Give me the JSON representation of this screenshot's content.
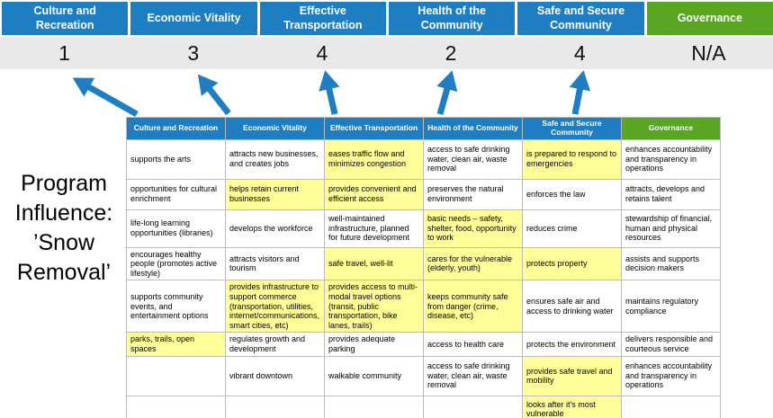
{
  "title": "Program Influence:\n’Snow Removal’",
  "colors": {
    "blue": "#1f7ec2",
    "green": "#58a622",
    "highlight": "#ffff99",
    "score_bg": "#e9e9e9",
    "arrow": "#1f7ec2"
  },
  "pillars": [
    {
      "label": "Culture and Recreation",
      "score": "1",
      "theme": "blue"
    },
    {
      "label": "Economic Vitality",
      "score": "3",
      "theme": "blue"
    },
    {
      "label": "Effective Transportation",
      "score": "4",
      "theme": "blue"
    },
    {
      "label": "Health of the Community",
      "score": "2",
      "theme": "blue"
    },
    {
      "label": "Safe and Secure Community",
      "score": "4",
      "theme": "blue"
    },
    {
      "label": "Governance",
      "score": "N/A",
      "theme": "green"
    }
  ],
  "table": {
    "headers": [
      {
        "label": "Culture and Recreation",
        "theme": "blue"
      },
      {
        "label": "Economic Vitality",
        "theme": "blue"
      },
      {
        "label": "Effective Transportation",
        "theme": "blue"
      },
      {
        "label": "Health of the Community",
        "theme": "blue"
      },
      {
        "label": "Safe and Secure Community",
        "theme": "blue"
      },
      {
        "label": "Governance",
        "theme": "green"
      }
    ],
    "rows": [
      [
        {
          "text": "supports the arts",
          "highlight": false
        },
        {
          "text": "attracts new businesses, and creates jobs",
          "highlight": false
        },
        {
          "text": "eases traffic flow and minimizes congestion",
          "highlight": true
        },
        {
          "text": "access to safe drinking water, clean air, waste removal",
          "highlight": false
        },
        {
          "text": "is prepared to respond to emergencies",
          "highlight": true
        },
        {
          "text": "enhances accountability and transparency in operations",
          "highlight": false
        }
      ],
      [
        {
          "text": "opportunities for cultural enrichment",
          "highlight": false
        },
        {
          "text": "helps retain current businesses",
          "highlight": true
        },
        {
          "text": "provides convenient and efficient access",
          "highlight": true
        },
        {
          "text": "preserves the natural environment",
          "highlight": false
        },
        {
          "text": "enforces the law",
          "highlight": false
        },
        {
          "text": "attracts, develops and retains talent",
          "highlight": false
        }
      ],
      [
        {
          "text": "life-long learning opportunities (libraries)",
          "highlight": false
        },
        {
          "text": "develops the workforce",
          "highlight": false
        },
        {
          "text": "well-maintained infrastructure, planned for future development",
          "highlight": false
        },
        {
          "text": "basic needs – safety, shelter, food, opportunity to work",
          "highlight": true
        },
        {
          "text": "reduces crime",
          "highlight": false
        },
        {
          "text": "stewardship of financial, human and physical resources",
          "highlight": false
        }
      ],
      [
        {
          "text": "encourages healthy people (promotes active lifestyle)",
          "highlight": false
        },
        {
          "text": "attracts visitors and tourism",
          "highlight": false
        },
        {
          "text": "safe travel, well-lit",
          "highlight": true
        },
        {
          "text": "cares for the vulnerable (elderly, youth)",
          "highlight": true
        },
        {
          "text": "protects property",
          "highlight": true
        },
        {
          "text": "assists and supports decision makers",
          "highlight": false
        }
      ],
      [
        {
          "text": "supports community events, and entertainment options",
          "highlight": false
        },
        {
          "text": "provides infrastructure to support commerce (transportation, utilities, internet/communications, smart cities, etc)",
          "highlight": true
        },
        {
          "text": "provides access to multi-modal travel options (transit, public transportation, bike lanes, trails)",
          "highlight": true
        },
        {
          "text": "keeps community safe from danger (crime, disease, etc)",
          "highlight": true
        },
        {
          "text": "ensures safe air and access to drinking water",
          "highlight": false
        },
        {
          "text": "maintains regulatory compliance",
          "highlight": false
        }
      ],
      [
        {
          "text": "parks, trails, open spaces",
          "highlight": true
        },
        {
          "text": "regulates growth and development",
          "highlight": false
        },
        {
          "text": "provides adequate parking",
          "highlight": false
        },
        {
          "text": "access to health care",
          "highlight": false
        },
        {
          "text": "protects the environment",
          "highlight": false
        },
        {
          "text": "delivers responsible and courteous service",
          "highlight": false
        }
      ],
      [
        {
          "text": "",
          "highlight": false
        },
        {
          "text": "vibrant downtown",
          "highlight": false
        },
        {
          "text": "walkable community",
          "highlight": false
        },
        {
          "text": "access to safe drinking water, clean air, waste removal",
          "highlight": false
        },
        {
          "text": "provides safe travel and mobility",
          "highlight": true
        },
        {
          "text": "enhances accountability and transparency in operations",
          "highlight": false
        }
      ],
      [
        {
          "text": "",
          "highlight": false
        },
        {
          "text": "",
          "highlight": false
        },
        {
          "text": "",
          "highlight": false
        },
        {
          "text": "",
          "highlight": false
        },
        {
          "text": "looks after it's most vulnerable",
          "highlight": true
        },
        {
          "text": "",
          "highlight": false
        }
      ]
    ]
  }
}
